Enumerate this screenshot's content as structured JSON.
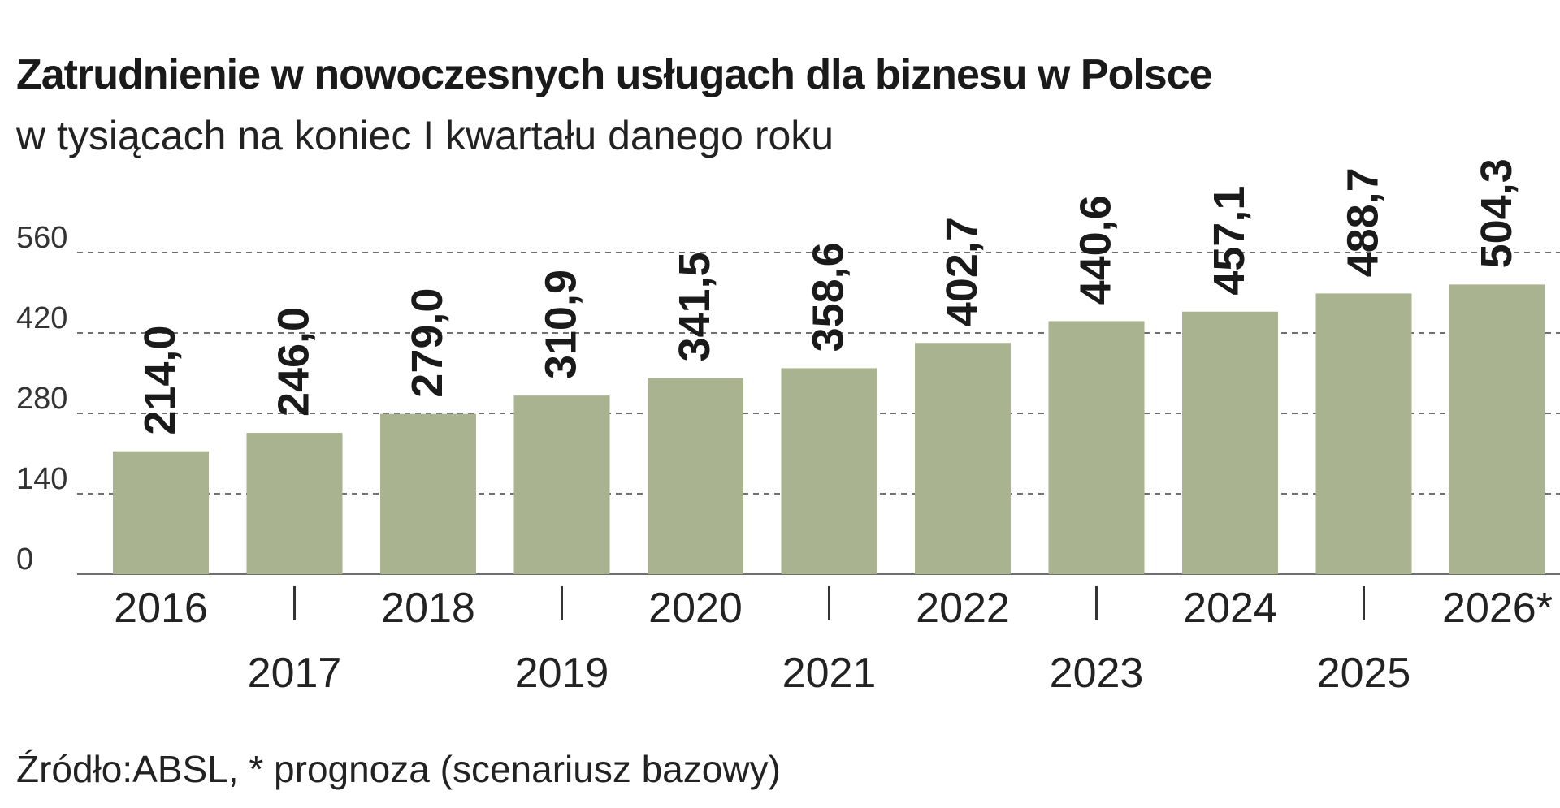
{
  "chart_data": {
    "type": "bar",
    "title": "Zatrudnienie w nowoczesnych usługach dla biznesu w Polsce",
    "subtitle": "w tysiącach na koniec I kwartału danego roku",
    "source": "Źródło:ABSL, * prognoza (scenariusz bazowy)",
    "categories": [
      "2016",
      "2017",
      "2018",
      "2019",
      "2020",
      "2021",
      "2022",
      "2023",
      "2024",
      "2025",
      "2026*"
    ],
    "values": [
      214.0,
      246.0,
      279.0,
      310.9,
      341.5,
      358.6,
      402.7,
      440.6,
      457.1,
      488.7,
      504.3
    ],
    "value_labels": [
      "214,0",
      "246,0",
      "279,0",
      "310,9",
      "341,5",
      "358,6",
      "402,7",
      "440,6",
      "457,1",
      "488,7",
      "504,3"
    ],
    "yticks": [
      0,
      140,
      280,
      420,
      560
    ],
    "ylim": [
      0,
      560
    ],
    "grid": "dashed horizontal",
    "xlabel": "",
    "ylabel": "",
    "bar_color": "#aab38f"
  }
}
